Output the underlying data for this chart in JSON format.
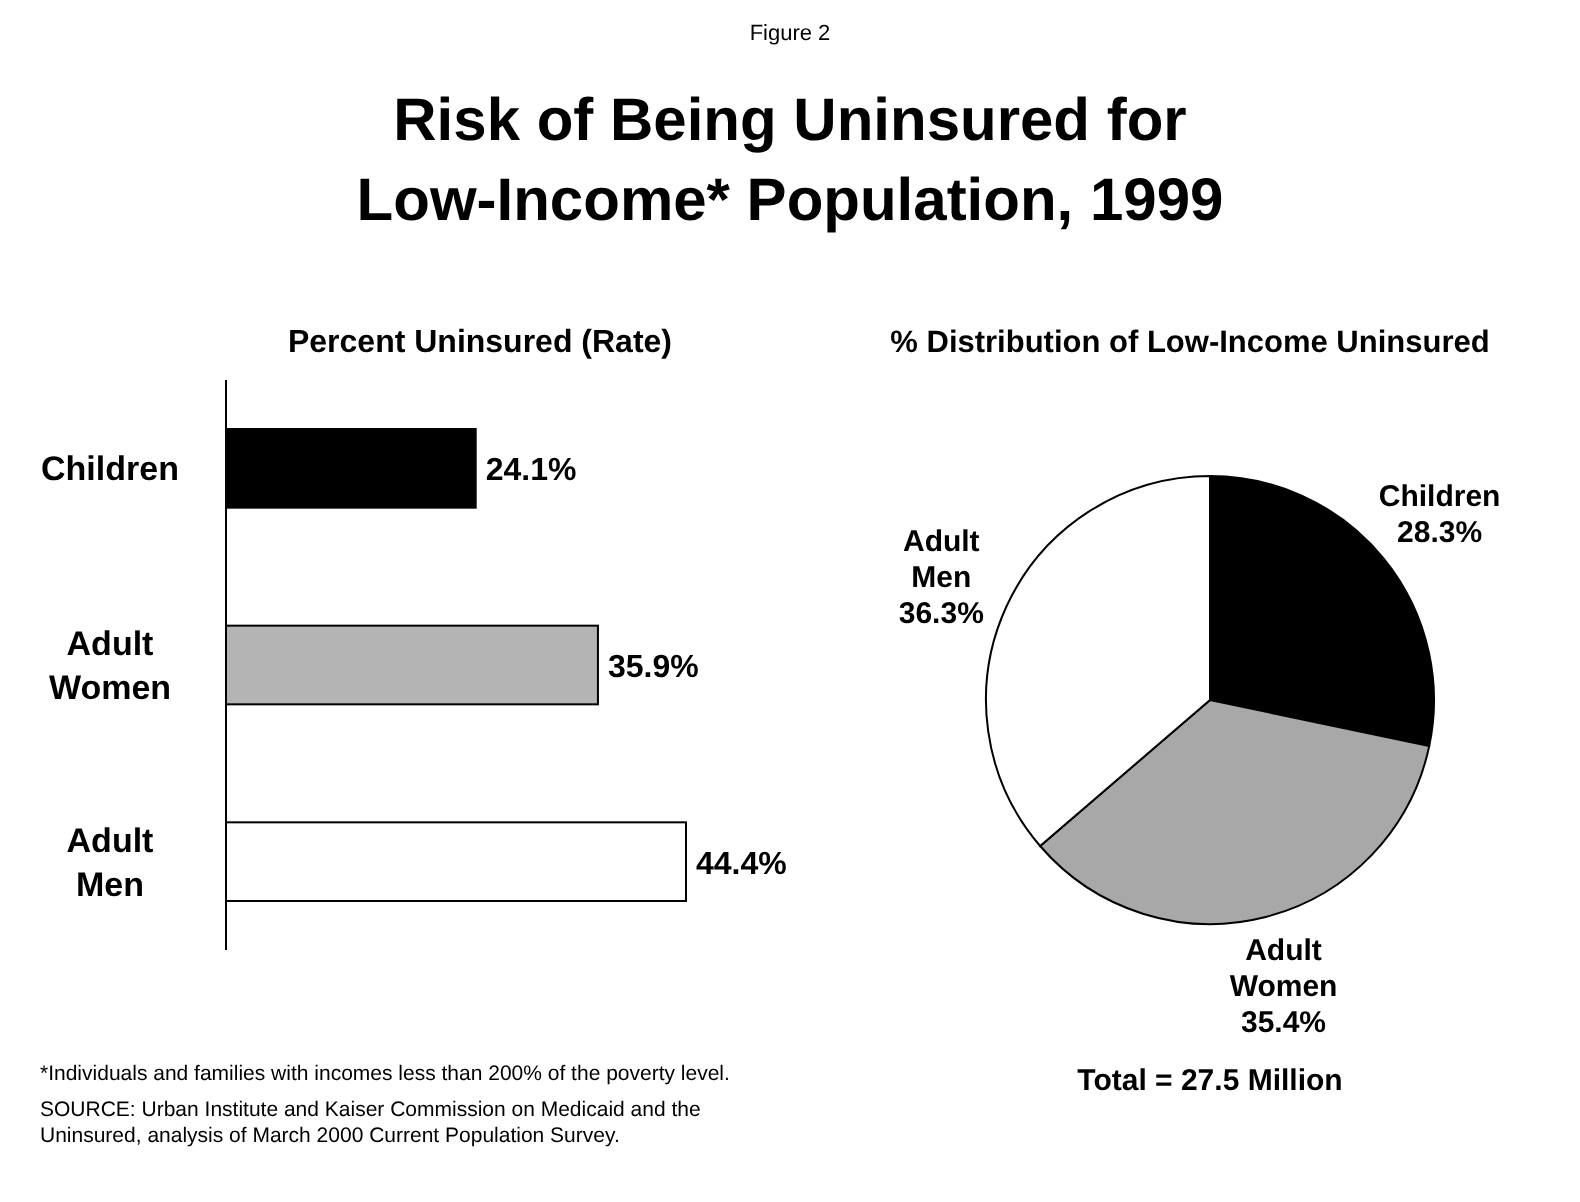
{
  "chart_data": [
    {
      "type": "bar",
      "orientation": "horizontal",
      "title": "Risk of Being Uninsured for Low-Income* Population, 1999",
      "subtitle": "Percent Uninsured (Rate)",
      "categories": [
        "Children",
        "Adult Women",
        "Adult Men"
      ],
      "values": [
        24.1,
        35.9,
        44.4
      ],
      "colors": [
        "#000000",
        "#b4b4b4",
        "#ffffff"
      ],
      "value_labels": [
        "24.1%",
        "35.9%",
        "44.4%"
      ],
      "annotations": [
        "Figure 2",
        "*Individuals and families with incomes less than 200% of the poverty level.",
        "SOURCE: Urban Institute and Kaiser Commission on Medicaid and the Uninsured, analysis of March 2000 Current Population Survey."
      ]
    },
    {
      "type": "pie",
      "title": "% Distribution of Low-Income Uninsured",
      "categories": [
        "Children",
        "Adult Women",
        "Adult Men"
      ],
      "values": [
        28.3,
        35.4,
        36.3
      ],
      "colors": [
        "#000000",
        "#a8a8a8",
        "#ffffff"
      ],
      "value_labels": [
        "28.3%",
        "35.4%",
        "36.3%"
      ],
      "annotations": [
        "Total = 27.5 Million"
      ]
    }
  ]
}
